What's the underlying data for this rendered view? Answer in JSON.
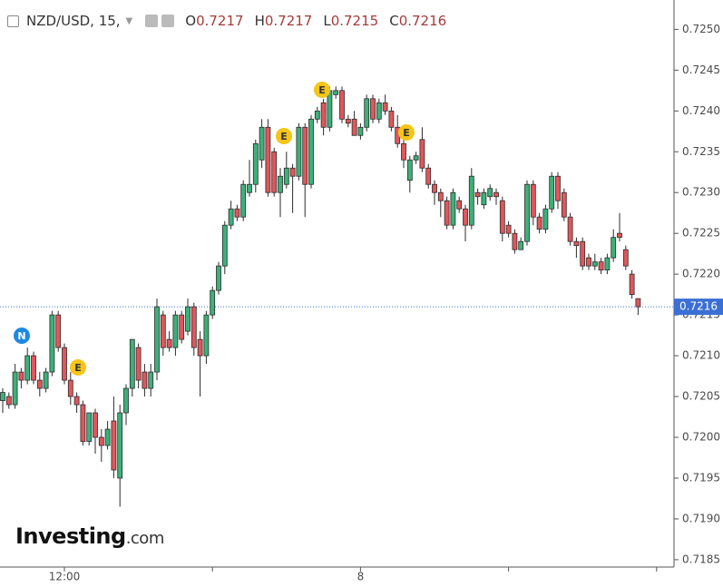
{
  "header": {
    "symbol": "NZD/USD, 15,",
    "ohlc": [
      {
        "label": "O",
        "value": "0.7217"
      },
      {
        "label": "H",
        "value": "0.7217"
      },
      {
        "label": "L",
        "value": "0.7215"
      },
      {
        "label": "C",
        "value": "0.7216"
      }
    ]
  },
  "logo": {
    "brand": "Investing",
    "suffix": ".com"
  },
  "chart_data": {
    "type": "candlestick",
    "up_color": "#3cb179",
    "down_color": "#e0575b",
    "outline_color": "#2b2b2b",
    "ylim": [
      0.71841,
      0.72536
    ],
    "yticks": [
      {
        "value": 0.7185,
        "label": "0.7185"
      },
      {
        "value": 0.719,
        "label": "0.7190"
      },
      {
        "value": 0.7195,
        "label": "0.7195"
      },
      {
        "value": 0.72,
        "label": "0.7200"
      },
      {
        "value": 0.7205,
        "label": "0.7205"
      },
      {
        "value": 0.721,
        "label": "0.7210"
      },
      {
        "value": 0.7215,
        "label": "0.7215"
      },
      {
        "value": 0.722,
        "label": "0.7220"
      },
      {
        "value": 0.7225,
        "label": "0.7225"
      },
      {
        "value": 0.723,
        "label": "0.7230"
      },
      {
        "value": 0.7235,
        "label": "0.7235"
      },
      {
        "value": 0.724,
        "label": "0.7240"
      },
      {
        "value": 0.7245,
        "label": "0.7245"
      },
      {
        "value": 0.725,
        "label": "0.7250"
      }
    ],
    "last_price": {
      "value": 0.7216,
      "label": "0.7216"
    },
    "categories": [
      null,
      null,
      null,
      null,
      null,
      null,
      null,
      null,
      null,
      null,
      "12:00",
      null,
      null,
      null,
      null,
      null,
      null,
      null,
      null,
      null,
      null,
      null,
      null,
      null,
      null,
      null,
      null,
      null,
      null,
      null,
      null,
      null,
      null,
      null,
      null,
      null,
      null,
      null,
      null,
      null,
      null,
      null,
      null,
      null,
      null,
      null,
      null,
      null,
      null,
      null,
      null,
      null,
      null,
      null,
      null,
      null,
      null,
      null,
      "8",
      null,
      null,
      null,
      null,
      null,
      null,
      null,
      null,
      null,
      null,
      null,
      null,
      null,
      null,
      null,
      null,
      null,
      null,
      null,
      null,
      null,
      null,
      null,
      null,
      null,
      null,
      null,
      null,
      null,
      null,
      null,
      null,
      null,
      null,
      null,
      null,
      null,
      null,
      null,
      null,
      null,
      null,
      null,
      null,
      null
    ],
    "events": [
      "N",
      "E",
      "E",
      "E",
      "E"
    ],
    "ohlc": [
      [
        0.72045,
        0.7206,
        0.7203,
        0.72055
      ],
      [
        0.7205,
        0.72055,
        0.72035,
        0.7204
      ],
      [
        0.7204,
        0.7209,
        0.72035,
        0.7208
      ],
      [
        0.7208,
        0.72085,
        0.7206,
        0.7207
      ],
      [
        0.7207,
        0.7211,
        0.72065,
        0.721
      ],
      [
        0.721,
        0.72105,
        0.72065,
        0.7207
      ],
      [
        0.7207,
        0.7208,
        0.7205,
        0.7206
      ],
      [
        0.7206,
        0.72085,
        0.72055,
        0.7208
      ],
      [
        0.7208,
        0.72155,
        0.72075,
        0.7215
      ],
      [
        0.7215,
        0.72155,
        0.72105,
        0.7211
      ],
      [
        0.7211,
        0.72115,
        0.72065,
        0.7207
      ],
      [
        0.7207,
        0.7208,
        0.7204,
        0.7205
      ],
      [
        0.7205,
        0.72055,
        0.7203,
        0.7204
      ],
      [
        0.7204,
        0.72045,
        0.7199,
        0.71995
      ],
      [
        0.71995,
        0.7203,
        0.7199,
        0.7203
      ],
      [
        0.7203,
        0.72035,
        0.7198,
        0.72
      ],
      [
        0.72,
        0.7201,
        0.7197,
        0.7199
      ],
      [
        0.7199,
        0.7202,
        0.71985,
        0.7201
      ],
      [
        0.7202,
        0.7205,
        0.7195,
        0.7196
      ],
      [
        0.7195,
        0.7204,
        0.71915,
        0.7203
      ],
      [
        0.7203,
        0.72065,
        0.72015,
        0.7206
      ],
      [
        0.7206,
        0.7212,
        0.7205,
        0.7212
      ],
      [
        0.7211,
        0.72115,
        0.7206,
        0.7207
      ],
      [
        0.7208,
        0.7209,
        0.7205,
        0.7206
      ],
      [
        0.7206,
        0.7209,
        0.7205,
        0.7208
      ],
      [
        0.7208,
        0.7217,
        0.7207,
        0.7216
      ],
      [
        0.7215,
        0.72155,
        0.721,
        0.7211
      ],
      [
        0.7212,
        0.7213,
        0.72105,
        0.7211
      ],
      [
        0.7211,
        0.72155,
        0.721,
        0.7215
      ],
      [
        0.7215,
        0.72155,
        0.72115,
        0.7212
      ],
      [
        0.7213,
        0.7217,
        0.72125,
        0.7216
      ],
      [
        0.7216,
        0.72165,
        0.721,
        0.7211
      ],
      [
        0.7212,
        0.7213,
        0.7205,
        0.721
      ],
      [
        0.721,
        0.72155,
        0.7209,
        0.7215
      ],
      [
        0.7215,
        0.72185,
        0.72145,
        0.7218
      ],
      [
        0.7218,
        0.72215,
        0.72175,
        0.7221
      ],
      [
        0.7221,
        0.72265,
        0.722,
        0.7226
      ],
      [
        0.7226,
        0.7229,
        0.72255,
        0.7228
      ],
      [
        0.7228,
        0.72285,
        0.72265,
        0.7227
      ],
      [
        0.7227,
        0.72315,
        0.72265,
        0.7231
      ],
      [
        0.723,
        0.7234,
        0.72295,
        0.7231
      ],
      [
        0.7231,
        0.72365,
        0.723,
        0.7236
      ],
      [
        0.7234,
        0.7239,
        0.7233,
        0.7238
      ],
      [
        0.7238,
        0.7239,
        0.72295,
        0.723
      ],
      [
        0.7235,
        0.72355,
        0.72295,
        0.723
      ],
      [
        0.723,
        0.7233,
        0.7227,
        0.7232
      ],
      [
        0.7231,
        0.7235,
        0.72305,
        0.7233
      ],
      [
        0.7233,
        0.72335,
        0.72275,
        0.7232
      ],
      [
        0.7232,
        0.72385,
        0.72315,
        0.7238
      ],
      [
        0.7238,
        0.72385,
        0.7227,
        0.7231
      ],
      [
        0.7231,
        0.72395,
        0.72305,
        0.7239
      ],
      [
        0.7239,
        0.72405,
        0.72385,
        0.724
      ],
      [
        0.7241,
        0.72415,
        0.7237,
        0.7238
      ],
      [
        0.7238,
        0.7243,
        0.72375,
        0.72425
      ],
      [
        0.7242,
        0.7243,
        0.72415,
        0.72425
      ],
      [
        0.72425,
        0.7243,
        0.72385,
        0.7239
      ],
      [
        0.7239,
        0.72395,
        0.7238,
        0.72385
      ],
      [
        0.7239,
        0.724,
        0.7237,
        0.7237
      ],
      [
        0.7237,
        0.72385,
        0.72365,
        0.7238
      ],
      [
        0.7238,
        0.7242,
        0.72375,
        0.72415
      ],
      [
        0.72415,
        0.7242,
        0.72385,
        0.7239
      ],
      [
        0.7239,
        0.72415,
        0.72385,
        0.7241
      ],
      [
        0.7241,
        0.7242,
        0.72395,
        0.724
      ],
      [
        0.724,
        0.72405,
        0.72375,
        0.7238
      ],
      [
        0.7238,
        0.72395,
        0.72355,
        0.7236
      ],
      [
        0.7236,
        0.72365,
        0.7233,
        0.7234
      ],
      [
        0.72315,
        0.72345,
        0.723,
        0.7234
      ],
      [
        0.7234,
        0.7235,
        0.72335,
        0.72345
      ],
      [
        0.72365,
        0.7238,
        0.72325,
        0.7233
      ],
      [
        0.7233,
        0.72335,
        0.72305,
        0.7231
      ],
      [
        0.7231,
        0.72315,
        0.72285,
        0.723
      ],
      [
        0.723,
        0.72305,
        0.7227,
        0.7229
      ],
      [
        0.7229,
        0.72295,
        0.72255,
        0.7226
      ],
      [
        0.7226,
        0.72305,
        0.72255,
        0.723
      ],
      [
        0.7229,
        0.72295,
        0.72275,
        0.7228
      ],
      [
        0.7228,
        0.72285,
        0.7224,
        0.7226
      ],
      [
        0.7226,
        0.7233,
        0.72255,
        0.7232
      ],
      [
        0.723,
        0.72305,
        0.72285,
        0.72295
      ],
      [
        0.72285,
        0.72305,
        0.7228,
        0.723
      ],
      [
        0.72295,
        0.7231,
        0.7229,
        0.72305
      ],
      [
        0.723,
        0.72305,
        0.72285,
        0.72295
      ],
      [
        0.7229,
        0.72295,
        0.7224,
        0.7225
      ],
      [
        0.7226,
        0.72265,
        0.72245,
        0.7225
      ],
      [
        0.7225,
        0.72255,
        0.72225,
        0.7223
      ],
      [
        0.7223,
        0.72245,
        0.7223,
        0.7224
      ],
      [
        0.7224,
        0.72315,
        0.72235,
        0.7231
      ],
      [
        0.7231,
        0.72315,
        0.7226,
        0.7227
      ],
      [
        0.7227,
        0.72275,
        0.7225,
        0.72255
      ],
      [
        0.72255,
        0.72285,
        0.7225,
        0.7228
      ],
      [
        0.7228,
        0.72325,
        0.72275,
        0.7232
      ],
      [
        0.7232,
        0.72325,
        0.7228,
        0.7229
      ],
      [
        0.723,
        0.72305,
        0.72265,
        0.7227
      ],
      [
        0.7227,
        0.72275,
        0.72235,
        0.7224
      ],
      [
        0.7224,
        0.72245,
        0.7222,
        0.72235
      ],
      [
        0.7224,
        0.72245,
        0.72205,
        0.7221
      ],
      [
        0.7222,
        0.72225,
        0.72205,
        0.7221
      ],
      [
        0.7221,
        0.72225,
        0.72205,
        0.72215
      ],
      [
        0.72215,
        0.7222,
        0.722,
        0.72205
      ],
      [
        0.72205,
        0.72225,
        0.722,
        0.7222
      ],
      [
        0.7222,
        0.72255,
        0.72215,
        0.72245
      ],
      [
        0.7225,
        0.72275,
        0.7224,
        0.72245
      ],
      [
        0.7223,
        0.72235,
        0.72205,
        0.7221
      ],
      [
        0.722,
        0.72205,
        0.7217,
        0.72175
      ],
      [
        0.7217,
        0.7217,
        0.7215,
        0.7216
      ]
    ]
  }
}
